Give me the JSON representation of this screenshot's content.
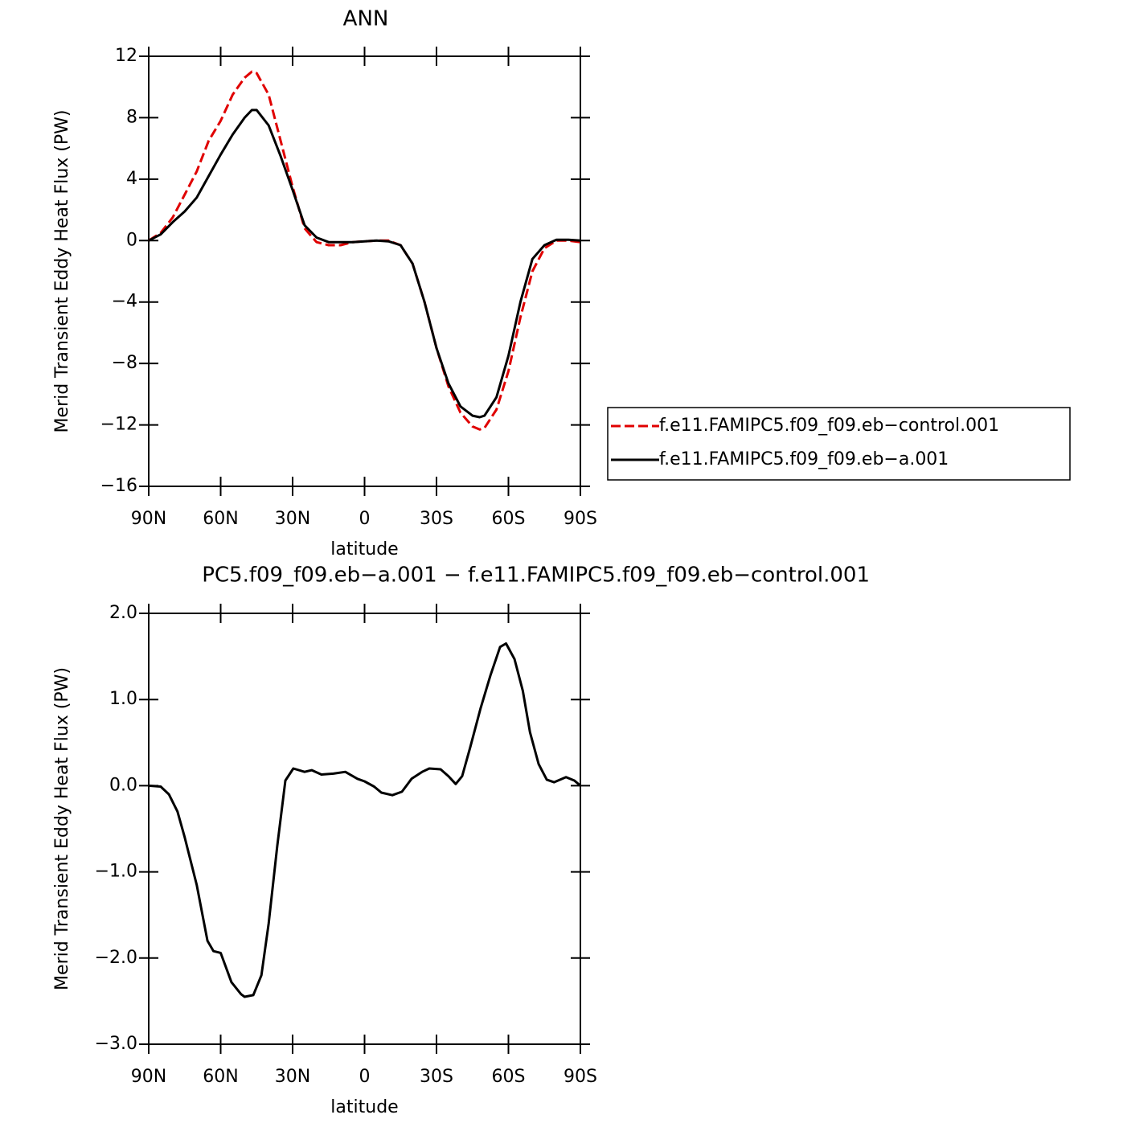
{
  "chart_data": [
    {
      "type": "line",
      "title": "ANN",
      "x_label": "latitude",
      "y_label": "Merid Transient Eddy Heat Flux (PW)",
      "x": [
        90,
        85,
        80,
        75,
        70,
        65,
        60,
        55,
        50,
        47,
        45,
        40,
        35,
        30,
        25,
        20,
        15,
        10,
        5,
        0,
        -5,
        -10,
        -15,
        -20,
        -25,
        -30,
        -35,
        -40,
        -45,
        -48,
        -50,
        -55,
        -60,
        -65,
        -70,
        -75,
        -80,
        -85,
        -90
      ],
      "series": [
        {
          "name": "f.e11.FAMIPC5.f09_f09.eb−control.001",
          "color": "#e00000",
          "dash": true,
          "values": [
            0,
            0.5,
            1.5,
            3.0,
            4.5,
            6.5,
            7.8,
            9.5,
            10.6,
            11.0,
            10.9,
            9.5,
            6.5,
            3.5,
            0.8,
            -0.1,
            -0.3,
            -0.3,
            -0.1,
            -0.05,
            0,
            0,
            -0.3,
            -1.5,
            -4,
            -7,
            -9.5,
            -11.2,
            -12.1,
            -12.3,
            -12.2,
            -11,
            -8.5,
            -5,
            -2,
            -0.5,
            0,
            0,
            -0.1
          ]
        },
        {
          "name": "f.e11.FAMIPC5.f09_f09.eb−a.001",
          "color": "#000000",
          "dash": false,
          "values": [
            0,
            0.4,
            1.2,
            1.9,
            2.8,
            4.2,
            5.6,
            6.9,
            8.0,
            8.5,
            8.5,
            7.5,
            5.5,
            3.3,
            1.0,
            0.2,
            -0.1,
            -0.1,
            -0.1,
            -0.05,
            0,
            -0.05,
            -0.3,
            -1.5,
            -4,
            -7,
            -9.3,
            -10.8,
            -11.4,
            -11.5,
            -11.4,
            -10.2,
            -7.5,
            -4,
            -1.2,
            -0.3,
            0.05,
            0.05,
            0
          ]
        }
      ],
      "xlim": [
        90,
        -90
      ],
      "xticks": [
        {
          "value": 90,
          "label": "90N"
        },
        {
          "value": 60,
          "label": "60N"
        },
        {
          "value": 30,
          "label": "30N"
        },
        0,
        {
          "value": -30,
          "label": "30S"
        },
        {
          "value": -60,
          "label": "60S"
        },
        {
          "value": -90,
          "label": "90S"
        }
      ],
      "ylim": [
        -16,
        12
      ],
      "yticks": [
        {
          "value": -16,
          "label": "−16"
        },
        {
          "value": -12,
          "label": "−12"
        },
        {
          "value": -8,
          "label": "−8"
        },
        {
          "value": -4,
          "label": "−4"
        },
        0,
        4,
        8,
        12
      ],
      "legend": "right"
    },
    {
      "type": "line",
      "title": "PC5.f09_f09.eb−a.001 − f.e11.FAMIPC5.f09_f09.eb−control.001",
      "x_label": "latitude",
      "y_label": "Merid Transient Eddy Heat Flux (PW)",
      "x": [
        90,
        85,
        81.6,
        78,
        75,
        70,
        65.5,
        63,
        60,
        55.5,
        51.5,
        50,
        46.4,
        43,
        40,
        36.4,
        33,
        29.7,
        25,
        22,
        18,
        13,
        8,
        3,
        0,
        -4,
        -7,
        -11.6,
        -15.6,
        -19.6,
        -24,
        -27,
        -31.7,
        -35,
        -38,
        -40.7,
        -44,
        -48.4,
        -52.5,
        -56.5,
        -59,
        -62.5,
        -66,
        -69,
        -72.6,
        -76,
        -79,
        -84,
        -87.5,
        -90
      ],
      "series": [
        {
          "name": null,
          "color": "#000000",
          "dash": false,
          "values": [
            0,
            -0.01,
            -0.1,
            -0.3,
            -0.6,
            -1.15,
            -1.8,
            -1.92,
            -1.94,
            -2.28,
            -2.42,
            -2.45,
            -2.43,
            -2.2,
            -1.6,
            -0.7,
            0.06,
            0.2,
            0.16,
            0.18,
            0.13,
            0.14,
            0.16,
            0.08,
            0.05,
            -0.01,
            -0.08,
            -0.11,
            -0.07,
            0.08,
            0.16,
            0.2,
            0.19,
            0.11,
            0.02,
            0.11,
            0.44,
            0.9,
            1.28,
            1.61,
            1.65,
            1.47,
            1.1,
            0.62,
            0.25,
            0.07,
            0.04,
            0.1,
            0.06,
            0
          ]
        }
      ],
      "xlim": [
        90,
        -90
      ],
      "xticks": [
        {
          "value": 90,
          "label": "90N"
        },
        {
          "value": 60,
          "label": "60N"
        },
        {
          "value": 30,
          "label": "30N"
        },
        0,
        {
          "value": -30,
          "label": "30S"
        },
        {
          "value": -60,
          "label": "60S"
        },
        {
          "value": -90,
          "label": "90S"
        }
      ],
      "ylim": [
        -3,
        2
      ],
      "yticks": [
        {
          "value": -3,
          "label": "−3.0"
        },
        {
          "value": -2,
          "label": "−2.0"
        },
        {
          "value": -1,
          "label": "−1.0"
        },
        {
          "value": 0,
          "label": "0.0"
        },
        {
          "value": 1,
          "label": "1.0"
        },
        {
          "value": 2,
          "label": "2.0"
        }
      ]
    }
  ]
}
